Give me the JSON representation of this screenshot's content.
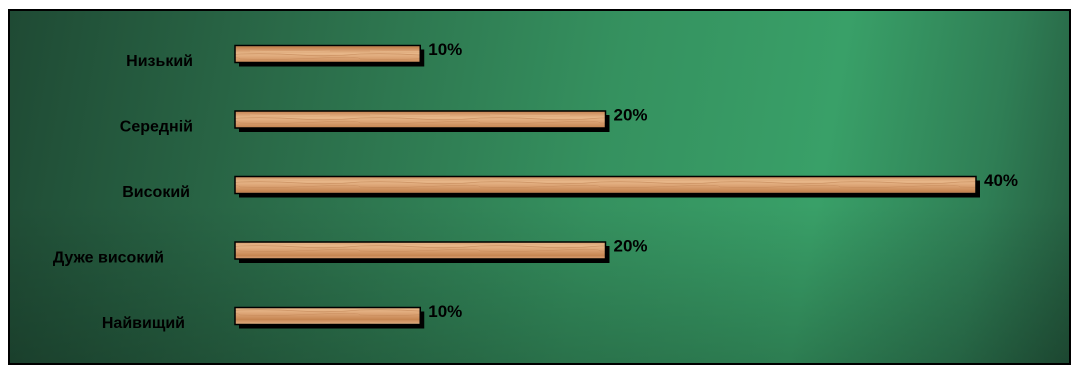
{
  "chart_data": {
    "type": "bar",
    "orientation": "horizontal",
    "categories": [
      "Низький",
      "Середній",
      "Високий",
      "Дуже високий",
      "Найвищий"
    ],
    "values": [
      10,
      20,
      40,
      20,
      10
    ],
    "value_labels": [
      "10%",
      "20%",
      "40%",
      "20%",
      "10%"
    ],
    "xlim": [
      0,
      40
    ],
    "grid": false,
    "legend": "none",
    "colors": {
      "bar": "#d9a070",
      "bar_highlight": "#e8b88a",
      "bar_shadow": "#000000",
      "background": "#2f7e55"
    }
  }
}
